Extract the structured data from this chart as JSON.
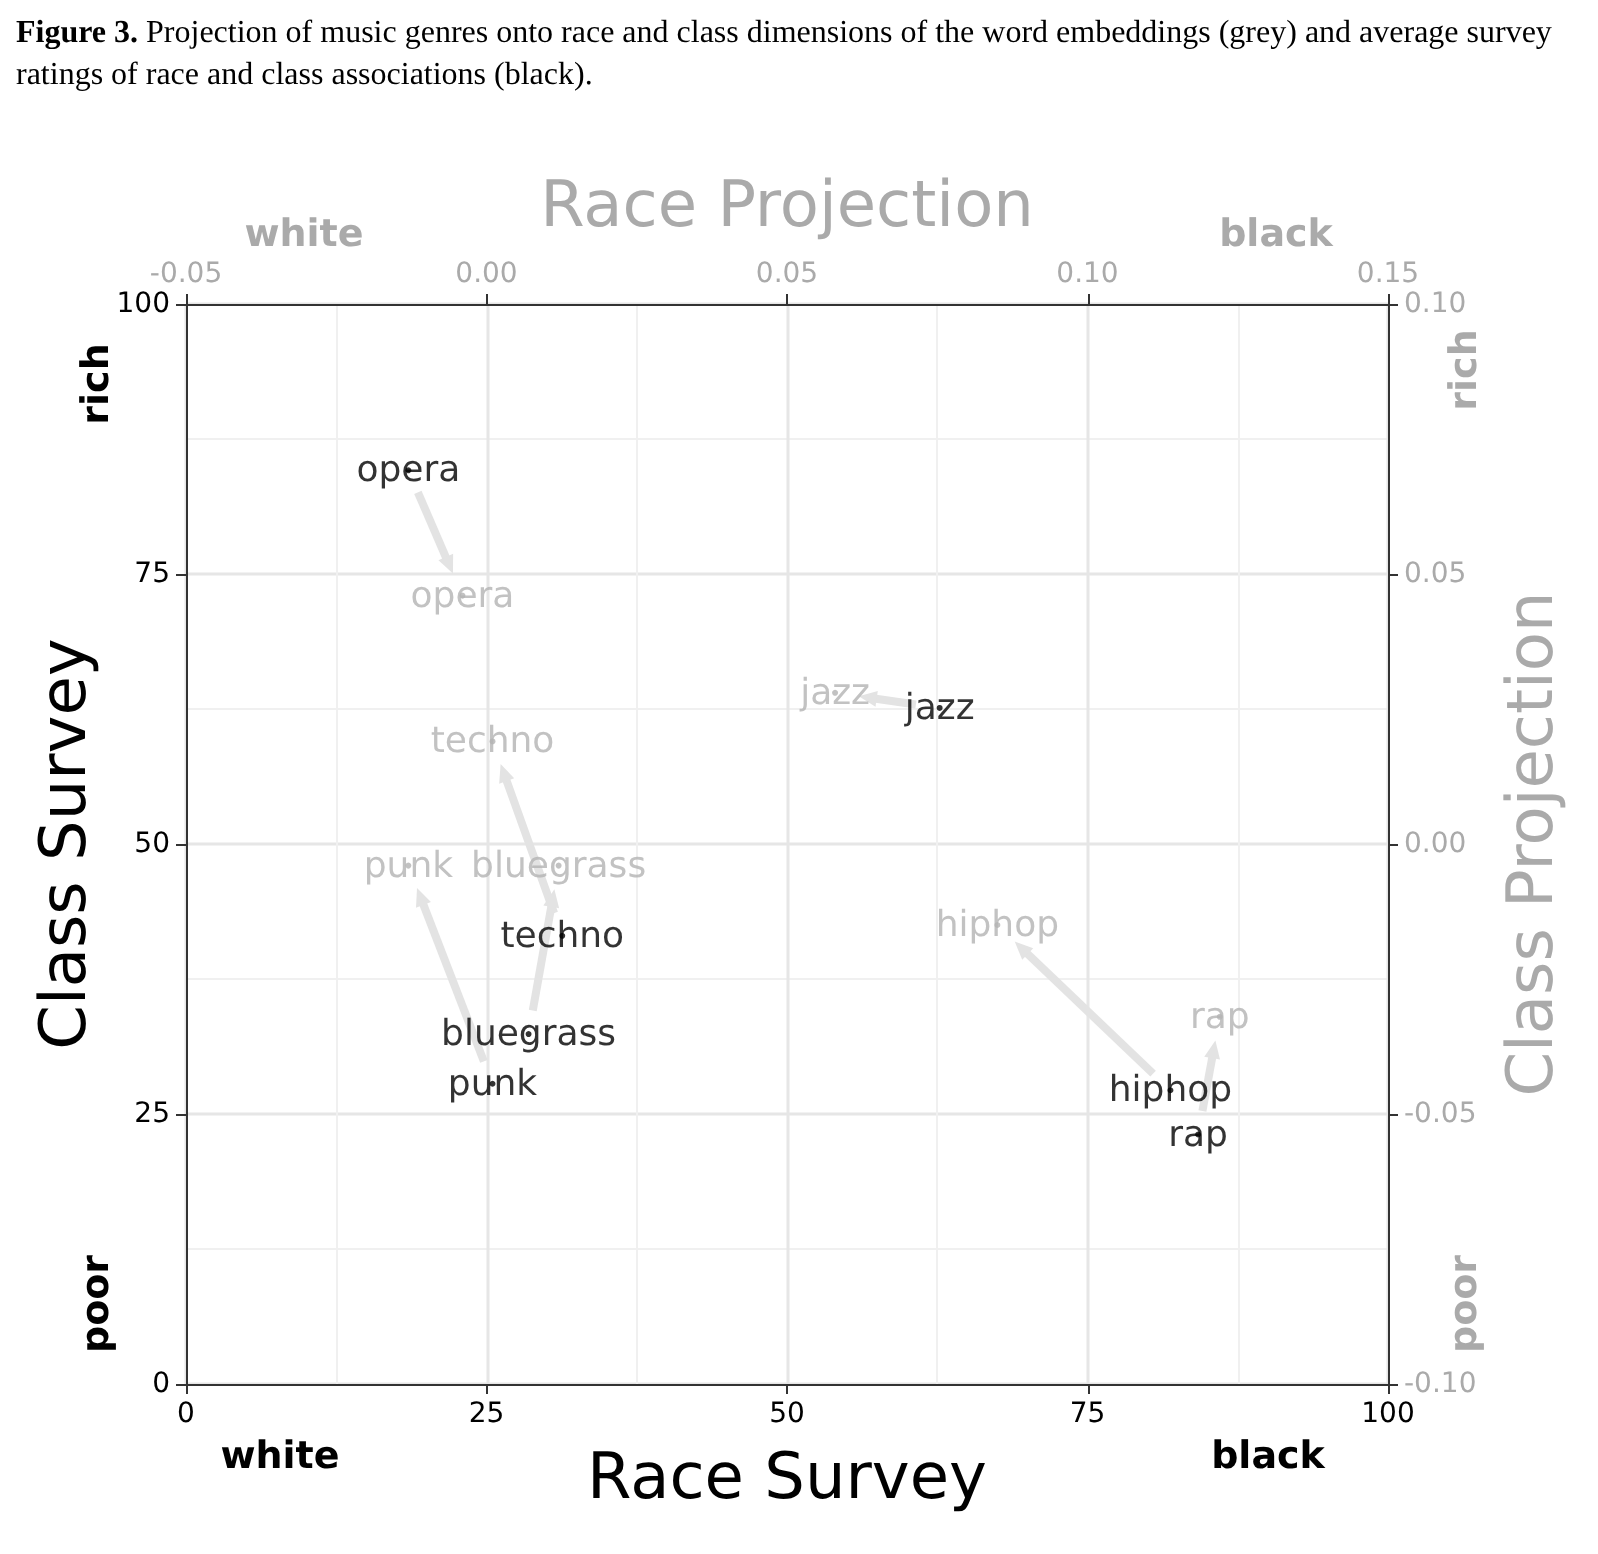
{
  "chart_data": [
    {
      "type": "scatter",
      "title": "Figure 3.",
      "subtitle": "Projection of music genres onto race and class dimensions of the word embeddings (grey) and average survey ratings of race and class associations (black).",
      "xlabel": "Race Survey",
      "ylabel": "Class Survey",
      "xlim": [
        0,
        100
      ],
      "xticks": [
        0,
        25,
        50,
        75,
        100
      ],
      "ylim": [
        0,
        100
      ],
      "yticks": [
        0,
        25,
        50,
        75,
        100
      ],
      "grid": true,
      "annotations": [
        "white",
        "black",
        "rich",
        "poor"
      ],
      "series": [
        {
          "color": "#000000",
          "x": [
            18.5,
            62.7,
            31.3,
            28.5,
            25.5,
            81.9,
            84.2
          ],
          "values": [
            84.6,
            62.6,
            41.5,
            32.4,
            27.8,
            27.2,
            23.1
          ],
          "value_labels": [
            "opera",
            "jazz",
            "techno",
            "bluegrass",
            "punk",
            "hiphop",
            "rap"
          ]
        }
      ]
    },
    {
      "type": "scatter",
      "xlabel": "Race Projection",
      "ylabel": "Class Projection",
      "xlim": [
        -0.05,
        0.15
      ],
      "xticks": [
        -0.05,
        {
          "value": 0,
          "label": "0.00"
        },
        0.05,
        {
          "value": 0.1,
          "label": "0.10"
        },
        0.15
      ],
      "ylim": [
        -0.1,
        0.1
      ],
      "yticks": [
        {
          "value": -0.1,
          "label": "-0.10"
        },
        -0.05,
        {
          "value": 0,
          "label": "0.00"
        },
        0.05,
        {
          "value": 0.1,
          "label": "0.10"
        }
      ],
      "annotations": [
        "white",
        "black",
        "rich",
        "poor"
      ],
      "series": [
        {
          "color": "#b3b3b3",
          "x": [
            -0.004,
            0.058,
            0.001,
            0.012,
            -0.013,
            0.085,
            0.122
          ],
          "values": [
            0.046,
            0.028,
            0.019,
            -0.004,
            -0.004,
            -0.015,
            -0.032
          ],
          "value_labels": [
            "opera",
            "jazz",
            "techno",
            "bluegrass",
            "punk",
            "hiphop",
            "rap"
          ]
        }
      ]
    }
  ]
}
